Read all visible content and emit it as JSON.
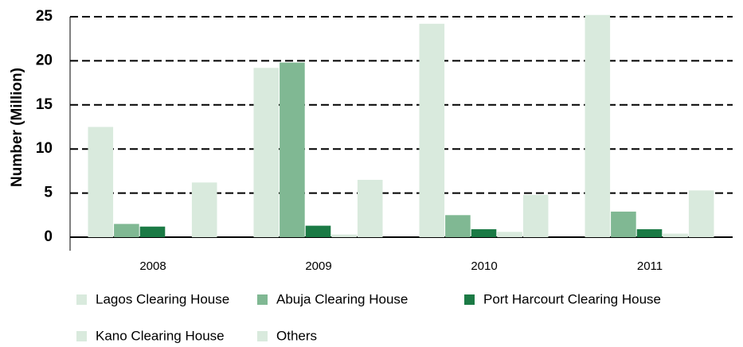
{
  "chart_data": {
    "type": "bar",
    "y_label": "Number (Million)",
    "categories": [
      "2008",
      "2009",
      "2010",
      "2011"
    ],
    "series": [
      {
        "name": "Lagos Clearing House",
        "color": "#d9eadd",
        "values": [
          12.5,
          19.2,
          24.2,
          25.2
        ]
      },
      {
        "name": "Abuja Clearing House",
        "color": "#80b893",
        "values": [
          1.5,
          19.8,
          2.5,
          2.9
        ]
      },
      {
        "name": "Port Harcourt Clearing House",
        "color": "#1b7a45",
        "values": [
          1.2,
          1.3,
          0.9,
          0.9
        ]
      },
      {
        "name": "Kano Clearing House",
        "color": "#d9eadd",
        "values": [
          0,
          0.3,
          0.6,
          0.4
        ]
      },
      {
        "name": "Others",
        "color": "#d9eadd",
        "values": [
          6.2,
          6.5,
          4.8,
          5.3
        ]
      }
    ],
    "ylim": [
      0,
      25
    ],
    "yticks": [
      0,
      5,
      10,
      15,
      20,
      25
    ],
    "grid": true
  }
}
